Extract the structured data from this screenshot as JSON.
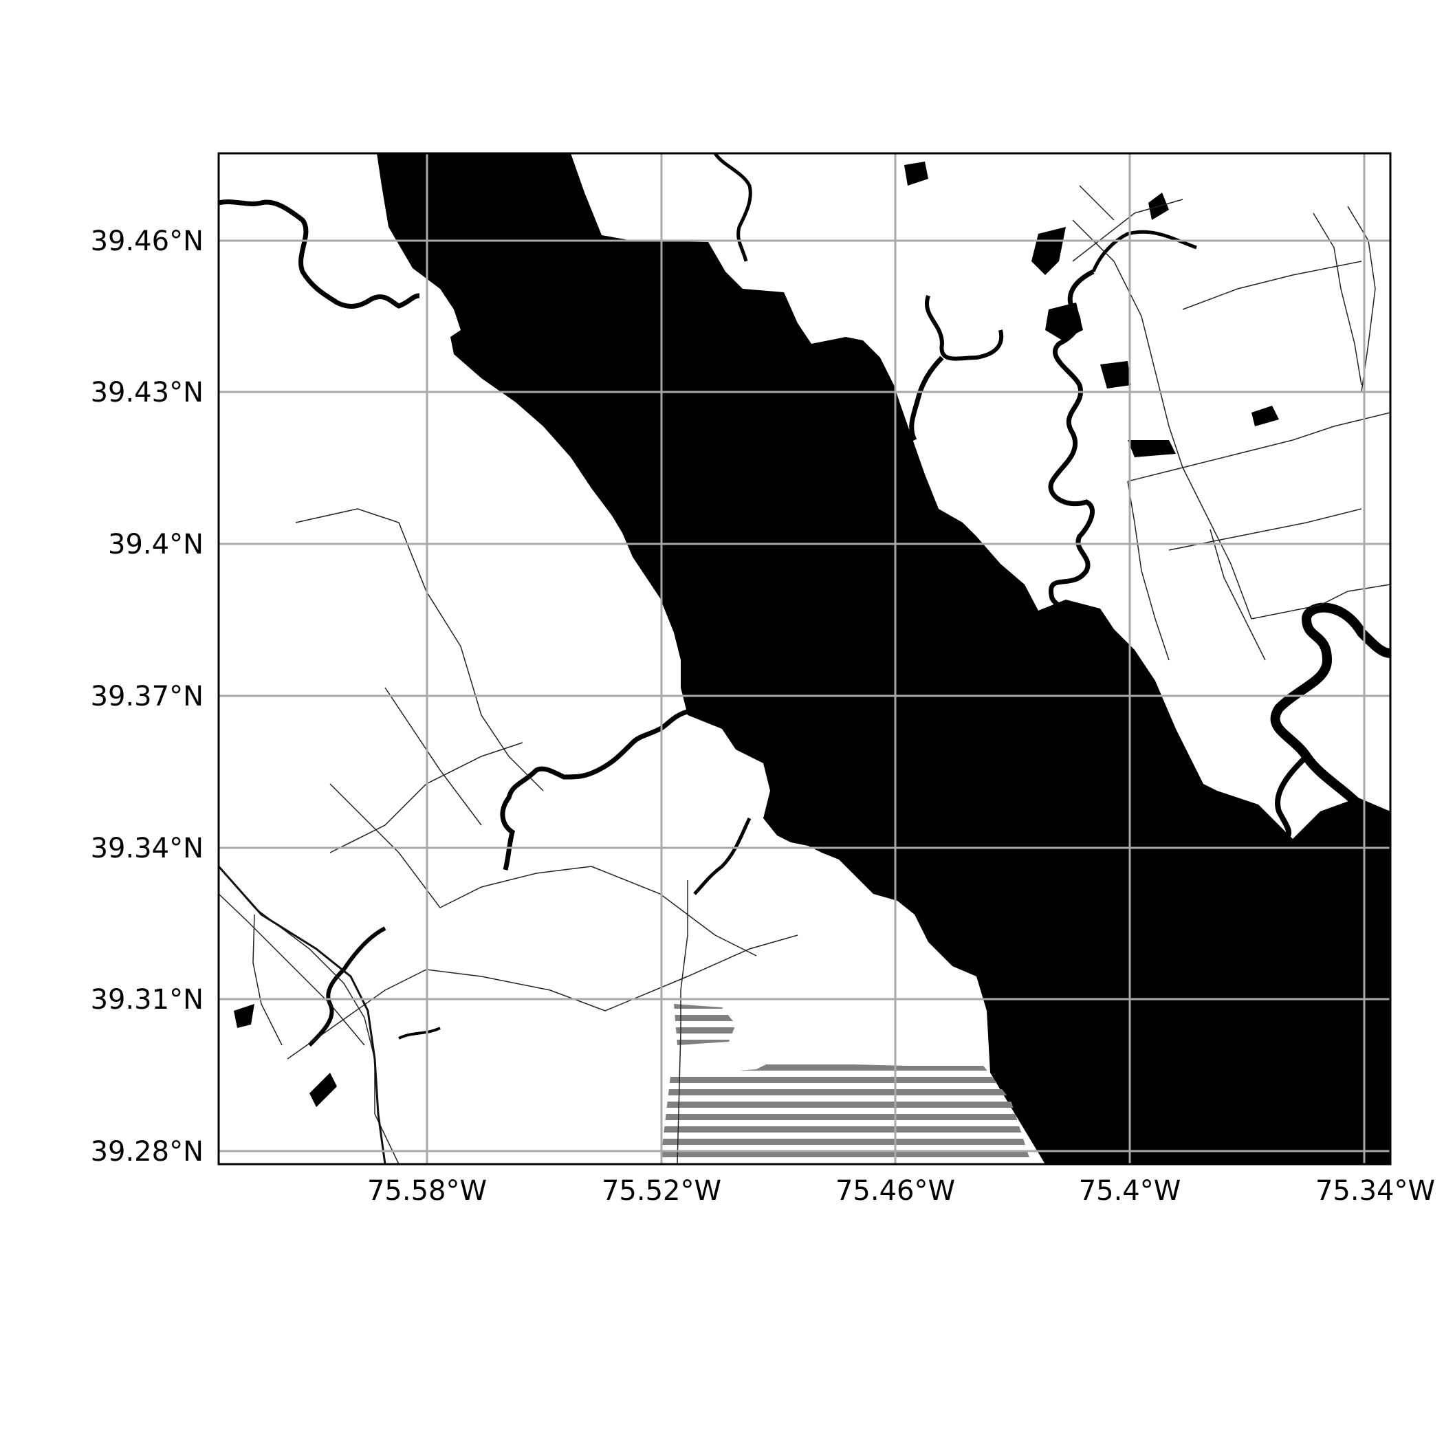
{
  "map": {
    "type": "grayscale-street-map",
    "colors": {
      "water": "#000000",
      "land": "#ffffff",
      "grid": "#a9a9a9",
      "frame": "#000000",
      "hatch": "#808080",
      "road": "#222222"
    },
    "extent": {
      "lon": [
        -75.633,
        -75.333
      ],
      "lat": [
        39.278,
        39.478
      ]
    },
    "grid": true,
    "y_axis": {
      "ticks": [
        {
          "value": 39.46,
          "label": "39.46°N"
        },
        {
          "value": 39.43,
          "label": "39.43°N"
        },
        {
          "value": 39.4,
          "label": "39.4°N"
        },
        {
          "value": 39.37,
          "label": "39.37°N"
        },
        {
          "value": 39.34,
          "label": "39.34°N"
        },
        {
          "value": 39.31,
          "label": "39.31°N"
        },
        {
          "value": 39.28,
          "label": "39.28°N"
        }
      ]
    },
    "x_axis": {
      "ticks": [
        {
          "value": -75.58,
          "label": "75.58°W"
        },
        {
          "value": -75.52,
          "label": "75.52°W"
        },
        {
          "value": -75.46,
          "label": "75.46°W"
        },
        {
          "value": -75.4,
          "label": "75.4°W"
        },
        {
          "value": -75.34,
          "label": "75.34°W"
        }
      ]
    }
  }
}
